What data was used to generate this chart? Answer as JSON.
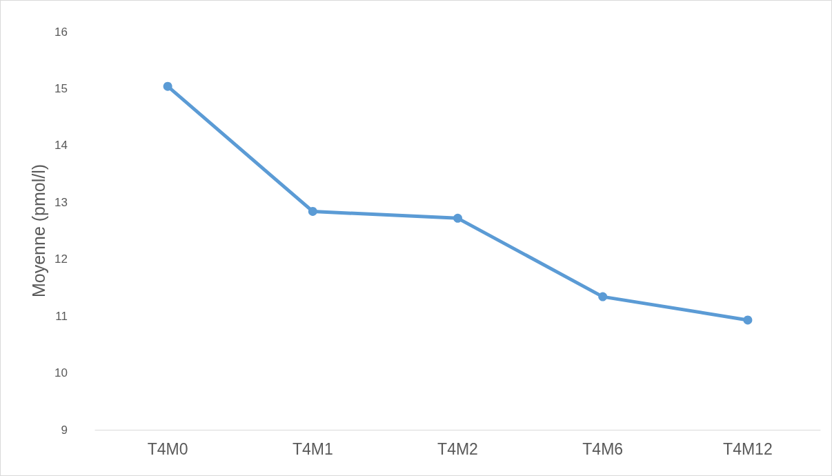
{
  "chart_data": {
    "type": "line",
    "ylabel": "Moyenne (pmol/l)",
    "categories": [
      "T4M0",
      "T4M1",
      "T4M2",
      "T4M6",
      "T4M12"
    ],
    "series": [
      {
        "color": "#5b9bd5",
        "values": [
          15.04,
          12.84,
          12.72,
          11.34,
          10.93
        ]
      }
    ],
    "ylim": [
      9,
      16
    ],
    "yticks": [
      9,
      10,
      11,
      12,
      13,
      14,
      15,
      16
    ],
    "grid": false,
    "marker": "circle",
    "line_style": "solid"
  }
}
